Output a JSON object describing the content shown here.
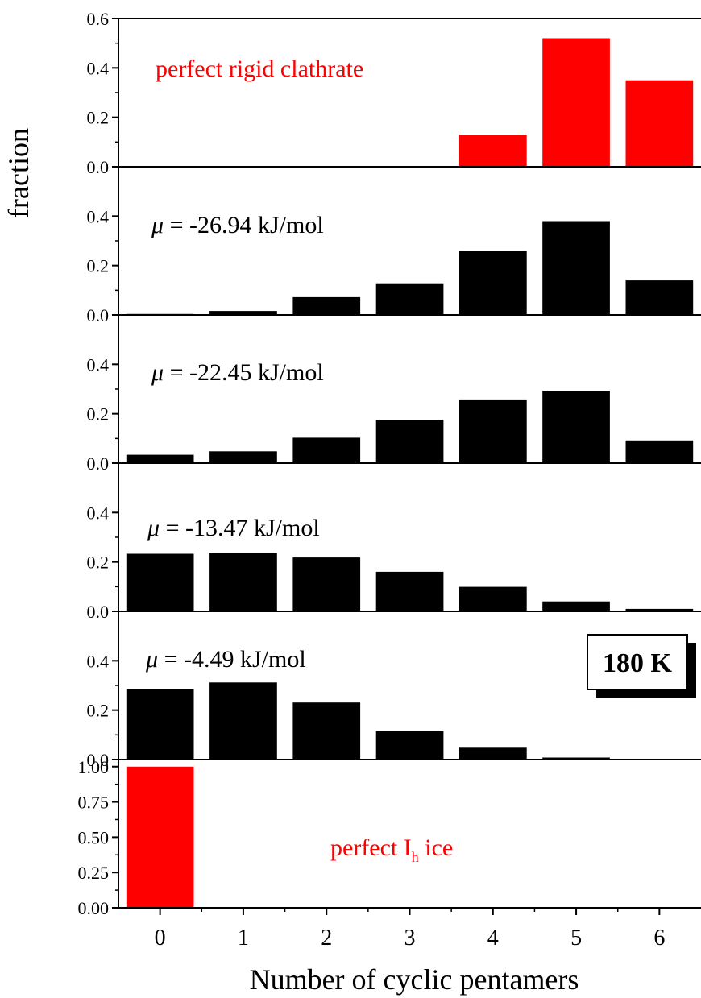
{
  "chart_data": {
    "type": "bar",
    "xlabel": "Number of cyclic pentamers",
    "ylabel": "fraction",
    "x_ticks": [
      "0",
      "1",
      "2",
      "3",
      "4",
      "5",
      "6"
    ],
    "badge": "180 K",
    "panels": [
      {
        "annotation": {
          "text": "perfect rigid clathrate",
          "color": "#ff0000"
        },
        "bar_color": "#ff0000",
        "ylim": [
          0,
          0.6
        ],
        "y_ticks": [
          "0.0",
          "0.2",
          "0.4",
          "0.6"
        ],
        "values": [
          0,
          0,
          0,
          0,
          0.13,
          0.52,
          0.35
        ]
      },
      {
        "annotation": {
          "mu_symbol": "μ",
          "text": " = -26.94 kJ/mol",
          "color": "#000000"
        },
        "bar_color": "#000000",
        "ylim": [
          0,
          0.6
        ],
        "y_ticks": [
          "0.0",
          "0.2",
          "0.4"
        ],
        "values": [
          0.004,
          0.016,
          0.072,
          0.128,
          0.258,
          0.38,
          0.14
        ]
      },
      {
        "annotation": {
          "mu_symbol": "μ",
          "text": " = -22.45 kJ/mol",
          "color": "#000000"
        },
        "bar_color": "#000000",
        "ylim": [
          0,
          0.6
        ],
        "y_ticks": [
          "0.0",
          "0.2",
          "0.4"
        ],
        "values": [
          0.034,
          0.048,
          0.103,
          0.176,
          0.258,
          0.293,
          0.092
        ]
      },
      {
        "annotation": {
          "mu_symbol": "μ",
          "text": " = -13.47 kJ/mol",
          "color": "#000000"
        },
        "bar_color": "#000000",
        "ylim": [
          0,
          0.6
        ],
        "y_ticks": [
          "0.0",
          "0.2",
          "0.4"
        ],
        "values": [
          0.233,
          0.238,
          0.218,
          0.16,
          0.099,
          0.04,
          0.01
        ]
      },
      {
        "annotation": {
          "mu_symbol": "μ",
          "text": " = -4.49 kJ/mol",
          "color": "#000000"
        },
        "bar_color": "#000000",
        "ylim": [
          0,
          0.6
        ],
        "y_ticks": [
          "0.0",
          "0.2",
          "0.4"
        ],
        "values": [
          0.284,
          0.312,
          0.231,
          0.115,
          0.048,
          0.008,
          0.0
        ]
      },
      {
        "annotation": {
          "text": "perfect I",
          "subscript": "h",
          "text_after": " ice",
          "color": "#ff0000"
        },
        "bar_color": "#ff0000",
        "ylim": [
          0,
          1.05
        ],
        "y_ticks": [
          "0.00",
          "0.25",
          "0.50",
          "0.75",
          "1.00"
        ],
        "values": [
          1.0,
          0,
          0,
          0,
          0,
          0,
          0
        ]
      }
    ]
  }
}
